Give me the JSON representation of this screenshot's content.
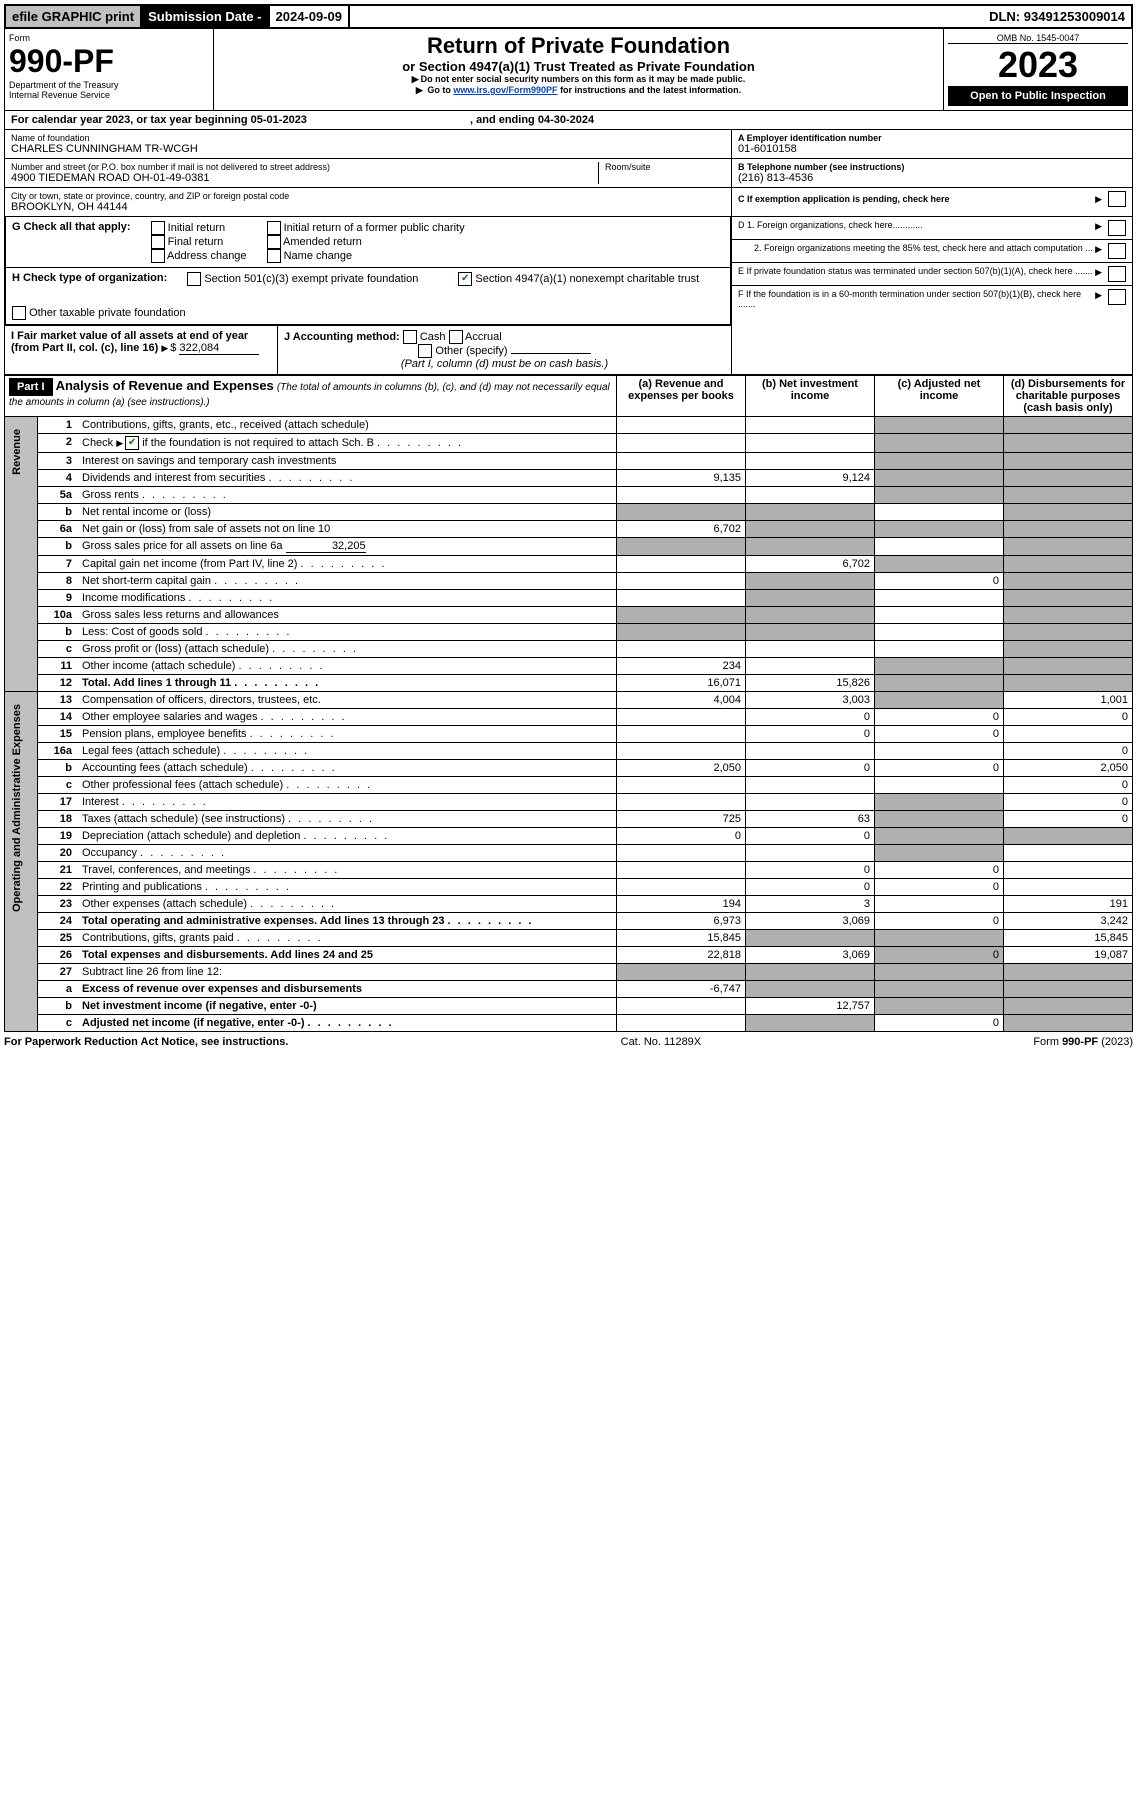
{
  "topbar": {
    "efile": "efile GRAPHIC print",
    "subdate_label": "Submission Date - ",
    "subdate_value": "2024-09-09",
    "dln_label": "DLN: ",
    "dln_value": "93491253009014"
  },
  "header": {
    "form_word": "Form",
    "form_no": "990-PF",
    "dept": "Department of the Treasury",
    "irs": "Internal Revenue Service",
    "title": "Return of Private Foundation",
    "subtitle": "or Section 4947(a)(1) Trust Treated as Private Foundation",
    "note1": "Do not enter social security numbers on this form as it may be made public.",
    "note2_pre": "Go to ",
    "note2_link": "www.irs.gov/Form990PF",
    "note2_post": " for instructions and the latest information.",
    "omb": "OMB No. 1545-0047",
    "year": "2023",
    "open": "Open to Public Inspection"
  },
  "calendar": {
    "pre": "For calendar year 2023, or tax year beginning ",
    "begin": "05-01-2023",
    "mid": " , and ending ",
    "end": "04-30-2024"
  },
  "entity": {
    "name_label": "Name of foundation",
    "name": "CHARLES CUNNINGHAM TR-WCGH",
    "addr_label": "Number and street (or P.O. box number if mail is not delivered to street address)",
    "addr": "4900 TIEDEMAN ROAD OH-01-49-0381",
    "room_label": "Room/suite",
    "city_label": "City or town, state or province, country, and ZIP or foreign postal code",
    "city": "BROOKLYN, OH  44144",
    "ein_label": "A Employer identification number",
    "ein": "01-6010158",
    "phone_label": "B Telephone number (see instructions)",
    "phone": "(216) 813-4536",
    "c_label": "C If exemption application is pending, check here",
    "d1": "D 1. Foreign organizations, check here............",
    "d2": "2. Foreign organizations meeting the 85% test, check here and attach computation ...",
    "e_label": "E  If private foundation status was terminated under section 507(b)(1)(A), check here .......",
    "f_label": "F  If the foundation is in a 60-month termination under section 507(b)(1)(B), check here ......."
  },
  "g": {
    "label": "G Check all that apply:",
    "o1": "Initial return",
    "o2": "Final return",
    "o3": "Address change",
    "o4": "Initial return of a former public charity",
    "o5": "Amended return",
    "o6": "Name change"
  },
  "h": {
    "label": "H Check type of organization:",
    "o1": "Section 501(c)(3) exempt private foundation",
    "o2": "Section 4947(a)(1) nonexempt charitable trust",
    "o3": "Other taxable private foundation"
  },
  "i": {
    "label": "I Fair market value of all assets at end of year (from Part II, col. (c), line 16)",
    "amount": "322,084"
  },
  "j": {
    "label": "J Accounting method:",
    "o1": "Cash",
    "o2": "Accrual",
    "o3": "Other (specify)",
    "note": "(Part I, column (d) must be on cash basis.)"
  },
  "part1": {
    "label": "Part I",
    "title": "Analysis of Revenue and Expenses",
    "note": "(The total of amounts in columns (b), (c), and (d) may not necessarily equal the amounts in column (a) (see instructions).)",
    "col_a": "(a)   Revenue and expenses per books",
    "col_b": "(b)   Net investment income",
    "col_c": "(c)   Adjusted net income",
    "col_d": "(d)   Disbursements for charitable purposes (cash basis only)"
  },
  "vert": {
    "revenue": "Revenue",
    "expenses": "Operating and Administrative Expenses"
  },
  "lines": {
    "1": {
      "n": "1",
      "d": "Contributions, gifts, grants, etc., received (attach schedule)"
    },
    "2": {
      "n": "2",
      "d_pre": "Check ",
      "d_post": " if the foundation is not required to attach Sch. B",
      "dots": true
    },
    "3": {
      "n": "3",
      "d": "Interest on savings and temporary cash investments"
    },
    "4": {
      "n": "4",
      "d": "Dividends and interest from securities",
      "dots": true,
      "a": "9,135",
      "b": "9,124"
    },
    "5a": {
      "n": "5a",
      "d": "Gross rents",
      "dots": true
    },
    "5b": {
      "n": "b",
      "d": "Net rental income or (loss)"
    },
    "6a": {
      "n": "6a",
      "d": "Net gain or (loss) from sale of assets not on line 10",
      "a": "6,702"
    },
    "6b": {
      "n": "b",
      "d": "Gross sales price for all assets on line 6a",
      "v": "32,205"
    },
    "7": {
      "n": "7",
      "d": "Capital gain net income (from Part IV, line 2)",
      "dots": true,
      "b": "6,702"
    },
    "8": {
      "n": "8",
      "d": "Net short-term capital gain",
      "dots": true,
      "c": "0"
    },
    "9": {
      "n": "9",
      "d": "Income modifications",
      "dots": true
    },
    "10a": {
      "n": "10a",
      "d": "Gross sales less returns and allowances"
    },
    "10b": {
      "n": "b",
      "d": "Less: Cost of goods sold",
      "dots": true
    },
    "10c": {
      "n": "c",
      "d": "Gross profit or (loss) (attach schedule)",
      "dots": true
    },
    "11": {
      "n": "11",
      "d": "Other income (attach schedule)",
      "dots": true,
      "a": "234"
    },
    "12": {
      "n": "12",
      "d": "Total. Add lines 1 through 11",
      "dots": true,
      "a": "16,071",
      "b": "15,826",
      "bold": true
    },
    "13": {
      "n": "13",
      "d": "Compensation of officers, directors, trustees, etc.",
      "a": "4,004",
      "b": "3,003",
      "dd": "1,001"
    },
    "14": {
      "n": "14",
      "d": "Other employee salaries and wages",
      "dots": true,
      "b": "0",
      "c": "0",
      "dd": "0"
    },
    "15": {
      "n": "15",
      "d": "Pension plans, employee benefits",
      "dots": true,
      "b": "0",
      "c": "0"
    },
    "16a": {
      "n": "16a",
      "d": "Legal fees (attach schedule)",
      "dots": true,
      "dd": "0"
    },
    "16b": {
      "n": "b",
      "d": "Accounting fees (attach schedule)",
      "dots": true,
      "a": "2,050",
      "b": "0",
      "c": "0",
      "dd": "2,050"
    },
    "16c": {
      "n": "c",
      "d": "Other professional fees (attach schedule)",
      "dots": true,
      "dd": "0"
    },
    "17": {
      "n": "17",
      "d": "Interest",
      "dots": true,
      "dd": "0"
    },
    "18": {
      "n": "18",
      "d": "Taxes (attach schedule) (see instructions)",
      "dots": true,
      "a": "725",
      "b": "63",
      "dd": "0"
    },
    "19": {
      "n": "19",
      "d": "Depreciation (attach schedule) and depletion",
      "dots": true,
      "a": "0",
      "b": "0"
    },
    "20": {
      "n": "20",
      "d": "Occupancy",
      "dots": true
    },
    "21": {
      "n": "21",
      "d": "Travel, conferences, and meetings",
      "dots": true,
      "b": "0",
      "c": "0"
    },
    "22": {
      "n": "22",
      "d": "Printing and publications",
      "dots": true,
      "b": "0",
      "c": "0"
    },
    "23": {
      "n": "23",
      "d": "Other expenses (attach schedule)",
      "dots": true,
      "a": "194",
      "b": "3",
      "dd": "191"
    },
    "24": {
      "n": "24",
      "d": "Total operating and administrative expenses. Add lines 13 through 23",
      "dots": true,
      "a": "6,973",
      "b": "3,069",
      "c": "0",
      "dd": "3,242",
      "bold": true
    },
    "25": {
      "n": "25",
      "d": "Contributions, gifts, grants paid",
      "dots": true,
      "a": "15,845",
      "dd": "15,845"
    },
    "26": {
      "n": "26",
      "d": "Total expenses and disbursements. Add lines 24 and 25",
      "a": "22,818",
      "b": "3,069",
      "c": "0",
      "dd": "19,087",
      "bold": true
    },
    "27": {
      "n": "27",
      "d": "Subtract line 26 from line 12:"
    },
    "27a": {
      "n": "a",
      "d": "Excess of revenue over expenses and disbursements",
      "a": "-6,747",
      "bold": true
    },
    "27b": {
      "n": "b",
      "d": "Net investment income (if negative, enter -0-)",
      "b": "12,757",
      "bold": true
    },
    "27c": {
      "n": "c",
      "d": "Adjusted net income (if negative, enter -0-)",
      "dots": true,
      "c": "0",
      "bold": true
    }
  },
  "footer": {
    "left": "For Paperwork Reduction Act Notice, see instructions.",
    "mid": "Cat. No. 11289X",
    "right": "Form 990-PF (2023)"
  }
}
